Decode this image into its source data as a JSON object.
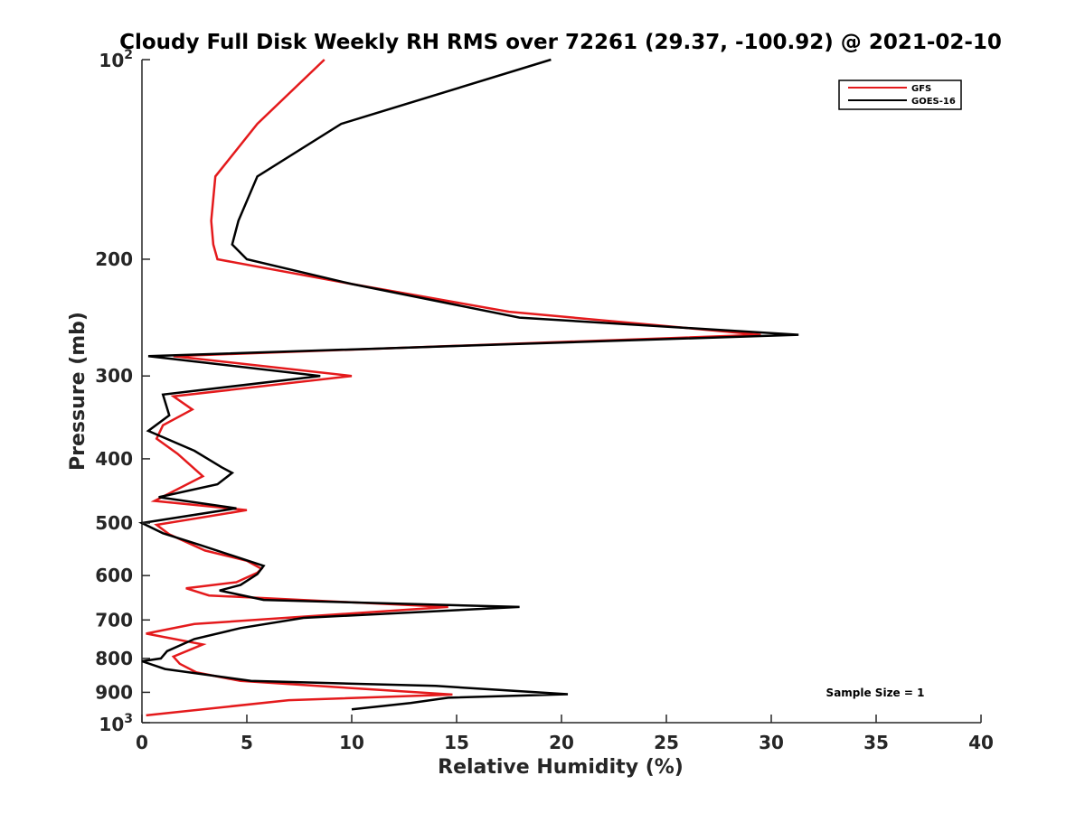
{
  "chart_data": {
    "type": "line",
    "title": "Cloudy Full Disk Weekly RH RMS over 72261 (29.37, -100.92) @ 2021-02-10",
    "xlabel": "Relative Humidity (%)",
    "ylabel": "Pressure (mb)",
    "xlim": [
      0,
      40
    ],
    "ylim": [
      100,
      1000
    ],
    "yscale": "log",
    "y_reversed": true,
    "grid": false,
    "legend_position": "top-right",
    "x_ticks": [
      0,
      5,
      10,
      15,
      20,
      25,
      30,
      35,
      40
    ],
    "x_tick_labels": [
      "0",
      "5",
      "10",
      "15",
      "20",
      "25",
      "30",
      "35",
      "40"
    ],
    "y_ticks": [
      200,
      300,
      400,
      500,
      600,
      700,
      800,
      900
    ],
    "y_tick_labels": [
      "200",
      "300",
      "400",
      "500",
      "600",
      "700",
      "800",
      "900"
    ],
    "y_top_label": {
      "base": "10",
      "exp": "2"
    },
    "y_bottom_label": {
      "base": "10",
      "exp": "3"
    },
    "series": [
      {
        "name": "GFS",
        "color": "#e41a1c",
        "points": [
          [
            8.7,
            100
          ],
          [
            5.5,
            125
          ],
          [
            3.5,
            150
          ],
          [
            3.3,
            175
          ],
          [
            3.4,
            190
          ],
          [
            3.6,
            200
          ],
          [
            10,
            218
          ],
          [
            17.5,
            240
          ],
          [
            29.5,
            260
          ],
          [
            1.5,
            280
          ],
          [
            10,
            300
          ],
          [
            1.5,
            322
          ],
          [
            2.4,
            337
          ],
          [
            1.0,
            356
          ],
          [
            0.7,
            373
          ],
          [
            1.7,
            393
          ],
          [
            2.9,
            425
          ],
          [
            0.6,
            463
          ],
          [
            5.0,
            478
          ],
          [
            0.7,
            503
          ],
          [
            1.3,
            520
          ],
          [
            3.0,
            550
          ],
          [
            5.0,
            570
          ],
          [
            5.7,
            586
          ],
          [
            5.5,
            594
          ],
          [
            4.5,
            614
          ],
          [
            2.1,
            627
          ],
          [
            3.2,
            643
          ],
          [
            14.6,
            669
          ],
          [
            2.5,
            710
          ],
          [
            0.2,
            734
          ],
          [
            2.9,
            762
          ],
          [
            1.5,
            795
          ],
          [
            1.8,
            815
          ],
          [
            2.6,
            840
          ],
          [
            4.7,
            865
          ],
          [
            14.8,
            907
          ],
          [
            7.0,
            925
          ],
          [
            0.2,
            975
          ]
        ]
      },
      {
        "name": "GOES-16",
        "color": "#000000",
        "points": [
          [
            19.5,
            100
          ],
          [
            9.5,
            125
          ],
          [
            5.5,
            150
          ],
          [
            4.6,
            175
          ],
          [
            4.3,
            190
          ],
          [
            5.0,
            200
          ],
          [
            10,
            218
          ],
          [
            18,
            245
          ],
          [
            31.3,
            260
          ],
          [
            0.3,
            280
          ],
          [
            8.5,
            300
          ],
          [
            1.0,
            320
          ],
          [
            1.3,
            344
          ],
          [
            0.3,
            363
          ],
          [
            2.5,
            389
          ],
          [
            3.8,
            412
          ],
          [
            4.3,
            420
          ],
          [
            3.6,
            437
          ],
          [
            0.8,
            457
          ],
          [
            4.5,
            475
          ],
          [
            0.0,
            500
          ],
          [
            1.0,
            518
          ],
          [
            2.8,
            540
          ],
          [
            5.8,
            580
          ],
          [
            5.5,
            597
          ],
          [
            4.7,
            620
          ],
          [
            3.7,
            632
          ],
          [
            5.8,
            653
          ],
          [
            18,
            669
          ],
          [
            7.7,
            695
          ],
          [
            4.7,
            720
          ],
          [
            2.5,
            748
          ],
          [
            1.2,
            780
          ],
          [
            0.9,
            800
          ],
          [
            0.0,
            808
          ],
          [
            1.1,
            830
          ],
          [
            5.2,
            865
          ],
          [
            14.0,
            880
          ],
          [
            20.3,
            906
          ],
          [
            14.6,
            917
          ],
          [
            12.8,
            934
          ],
          [
            10,
            955
          ]
        ]
      }
    ],
    "annotation": "Sample Size = 1"
  }
}
